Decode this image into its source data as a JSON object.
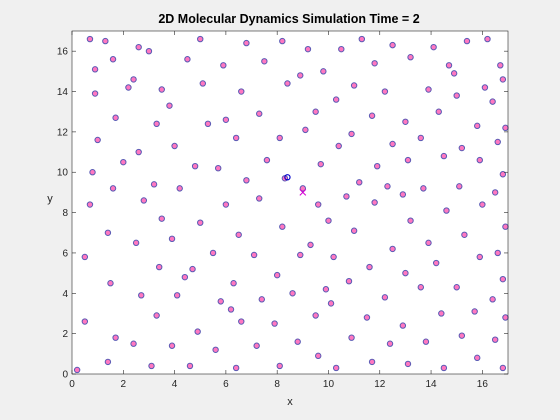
{
  "chart_data": {
    "type": "scatter",
    "title": "2D Molecular Dynamics Simulation Time = 2",
    "xlabel": "x",
    "ylabel": "y",
    "xlim": [
      0,
      17
    ],
    "ylim": [
      0,
      17
    ],
    "xticks": [
      0,
      2,
      4,
      6,
      8,
      10,
      12,
      14,
      16
    ],
    "yticks": [
      0,
      2,
      4,
      6,
      8,
      10,
      12,
      14,
      16
    ],
    "grid": false,
    "legend": "none",
    "colors": {
      "figure_background": "#f0f0f0",
      "axes_background": "#ffffff",
      "axis_color": "#262626",
      "particle_fill": "#ff77c0",
      "particle_edge": "#5a5ab4",
      "tracked_particle": "#0000cc",
      "marker_x": "#d400d4"
    },
    "series": [
      {
        "marker": "dot",
        "points": [
          [
            0.2,
            0.2
          ],
          [
            0.5,
            2.6
          ],
          [
            0.5,
            5.8
          ],
          [
            0.7,
            8.4
          ],
          [
            0.8,
            10.0
          ],
          [
            1.0,
            11.6
          ],
          [
            0.9,
            13.9
          ],
          [
            0.9,
            15.1
          ],
          [
            0.7,
            16.6
          ],
          [
            1.4,
            0.6
          ],
          [
            1.7,
            1.8
          ],
          [
            1.5,
            4.5
          ],
          [
            1.4,
            7.0
          ],
          [
            1.6,
            9.2
          ],
          [
            1.7,
            12.7
          ],
          [
            1.6,
            15.6
          ],
          [
            2.2,
            14.2
          ],
          [
            2.4,
            1.5
          ],
          [
            2.7,
            3.9
          ],
          [
            2.5,
            6.5
          ],
          [
            2.8,
            8.6
          ],
          [
            2.6,
            11.0
          ],
          [
            2.4,
            14.6
          ],
          [
            2.6,
            16.2
          ],
          [
            3.1,
            0.4
          ],
          [
            3.3,
            2.9
          ],
          [
            3.4,
            5.3
          ],
          [
            3.5,
            7.7
          ],
          [
            3.2,
            9.4
          ],
          [
            3.3,
            12.4
          ],
          [
            3.5,
            14.1
          ],
          [
            3.9,
            1.4
          ],
          [
            4.1,
            3.9
          ],
          [
            3.9,
            6.7
          ],
          [
            4.2,
            9.2
          ],
          [
            4.0,
            11.3
          ],
          [
            3.8,
            13.3
          ],
          [
            4.5,
            15.6
          ],
          [
            4.6,
            0.4
          ],
          [
            4.9,
            2.1
          ],
          [
            4.7,
            5.2
          ],
          [
            5.0,
            7.5
          ],
          [
            4.8,
            10.3
          ],
          [
            5.3,
            12.4
          ],
          [
            5.1,
            14.4
          ],
          [
            5.0,
            16.6
          ],
          [
            5.6,
            1.2
          ],
          [
            5.8,
            3.6
          ],
          [
            5.5,
            6.0
          ],
          [
            6.0,
            8.4
          ],
          [
            5.7,
            10.2
          ],
          [
            6.0,
            12.6
          ],
          [
            5.9,
            15.3
          ],
          [
            6.4,
            0.3
          ],
          [
            6.6,
            2.6
          ],
          [
            6.3,
            4.5
          ],
          [
            6.5,
            6.9
          ],
          [
            6.8,
            9.6
          ],
          [
            6.4,
            11.7
          ],
          [
            6.6,
            14.0
          ],
          [
            6.8,
            16.4
          ],
          [
            7.2,
            1.4
          ],
          [
            7.4,
            3.7
          ],
          [
            7.1,
            5.9
          ],
          [
            7.3,
            8.7
          ],
          [
            7.6,
            10.6
          ],
          [
            7.3,
            12.9
          ],
          [
            7.5,
            15.5
          ],
          [
            8.1,
            0.4
          ],
          [
            7.9,
            2.5
          ],
          [
            8.0,
            4.9
          ],
          [
            8.2,
            7.3
          ],
          [
            8.3,
            9.7
          ],
          [
            8.1,
            11.7
          ],
          [
            8.4,
            14.4
          ],
          [
            8.2,
            16.5
          ],
          [
            8.8,
            1.6
          ],
          [
            8.6,
            4.0
          ],
          [
            8.9,
            5.9
          ],
          [
            9.0,
            9.2
          ],
          [
            9.1,
            12.1
          ],
          [
            8.9,
            14.8
          ],
          [
            9.2,
            16.1
          ],
          [
            9.6,
            0.9
          ],
          [
            9.5,
            2.9
          ],
          [
            9.3,
            6.4
          ],
          [
            9.6,
            8.4
          ],
          [
            9.7,
            10.4
          ],
          [
            9.5,
            13.0
          ],
          [
            9.8,
            15.0
          ],
          [
            10.3,
            0.3
          ],
          [
            10.1,
            3.5
          ],
          [
            10.2,
            5.8
          ],
          [
            10.0,
            7.6
          ],
          [
            10.4,
            11.3
          ],
          [
            10.3,
            13.6
          ],
          [
            10.5,
            16.1
          ],
          [
            10.9,
            1.8
          ],
          [
            10.8,
            4.6
          ],
          [
            11.0,
            7.1
          ],
          [
            11.2,
            9.5
          ],
          [
            10.9,
            11.9
          ],
          [
            11.0,
            14.3
          ],
          [
            11.3,
            16.6
          ],
          [
            11.7,
            0.6
          ],
          [
            11.5,
            2.8
          ],
          [
            11.6,
            5.3
          ],
          [
            11.8,
            8.5
          ],
          [
            11.9,
            10.3
          ],
          [
            11.7,
            12.8
          ],
          [
            11.8,
            15.4
          ],
          [
            12.4,
            1.5
          ],
          [
            12.2,
            3.8
          ],
          [
            12.5,
            6.2
          ],
          [
            12.3,
            9.3
          ],
          [
            12.5,
            11.4
          ],
          [
            12.2,
            14.0
          ],
          [
            12.5,
            16.3
          ],
          [
            13.1,
            0.5
          ],
          [
            12.9,
            2.4
          ],
          [
            13.0,
            5.0
          ],
          [
            13.2,
            7.6
          ],
          [
            13.1,
            10.6
          ],
          [
            13.0,
            12.5
          ],
          [
            13.2,
            15.7
          ],
          [
            13.8,
            1.6
          ],
          [
            13.6,
            4.3
          ],
          [
            13.9,
            6.5
          ],
          [
            13.7,
            9.2
          ],
          [
            13.6,
            11.7
          ],
          [
            13.9,
            14.1
          ],
          [
            14.1,
            16.2
          ],
          [
            14.5,
            0.3
          ],
          [
            14.4,
            3.0
          ],
          [
            14.2,
            5.5
          ],
          [
            14.6,
            8.1
          ],
          [
            14.5,
            10.8
          ],
          [
            14.3,
            13.0
          ],
          [
            14.7,
            15.3
          ],
          [
            15.2,
            1.9
          ],
          [
            15.0,
            4.3
          ],
          [
            15.3,
            6.9
          ],
          [
            15.1,
            9.3
          ],
          [
            15.2,
            11.2
          ],
          [
            15.0,
            13.8
          ],
          [
            15.4,
            16.5
          ],
          [
            15.8,
            0.8
          ],
          [
            15.7,
            3.1
          ],
          [
            15.9,
            5.8
          ],
          [
            16.0,
            8.4
          ],
          [
            15.9,
            10.6
          ],
          [
            15.8,
            12.3
          ],
          [
            16.1,
            14.2
          ],
          [
            16.2,
            16.6
          ],
          [
            16.5,
            1.7
          ],
          [
            16.4,
            3.7
          ],
          [
            16.6,
            6.0
          ],
          [
            16.5,
            9.0
          ],
          [
            16.6,
            11.5
          ],
          [
            16.4,
            13.5
          ],
          [
            16.7,
            15.3
          ],
          [
            16.8,
            0.3
          ],
          [
            16.9,
            2.8
          ],
          [
            16.8,
            4.7
          ],
          [
            16.9,
            7.3
          ],
          [
            16.8,
            9.9
          ],
          [
            16.9,
            12.2
          ],
          [
            16.8,
            14.6
          ],
          [
            3.0,
            16.0
          ],
          [
            1.3,
            16.5
          ],
          [
            10.7,
            8.8
          ],
          [
            12.9,
            8.9
          ],
          [
            4.4,
            4.8
          ],
          [
            6.2,
            3.2
          ],
          [
            9.9,
            4.2
          ],
          [
            2.0,
            10.5
          ],
          [
            14.9,
            14.9
          ]
        ]
      },
      {
        "name": "tracked particle",
        "marker": "circle",
        "points": [
          [
            8.4,
            9.75
          ]
        ]
      },
      {
        "name": "reference point",
        "marker": "x",
        "points": [
          [
            9.0,
            9.0
          ]
        ]
      }
    ]
  }
}
